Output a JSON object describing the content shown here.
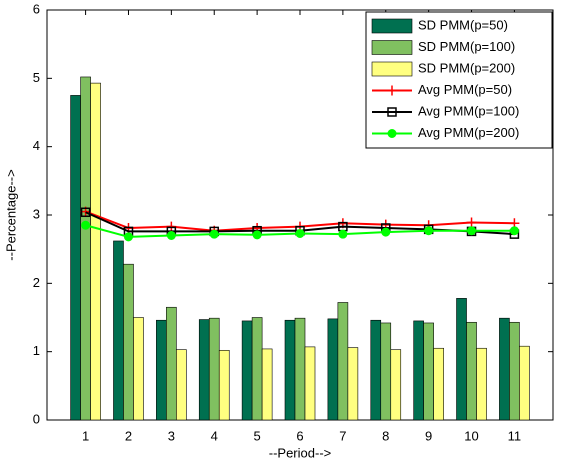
{
  "chart_data": {
    "type": "bar",
    "x": [
      1,
      2,
      3,
      4,
      5,
      6,
      7,
      8,
      9,
      10,
      11
    ],
    "xlim": [
      0.1,
      11.9
    ],
    "xticks": [
      1,
      2,
      3,
      4,
      5,
      6,
      7,
      8,
      9,
      10,
      11
    ],
    "ylim": [
      0,
      6
    ],
    "yticks": [
      0,
      1,
      2,
      3,
      4,
      5,
      6
    ],
    "xlabel": "--Period-->",
    "ylabel": "--Percentage-->",
    "legend": "upper right",
    "series": [
      {
        "name": "SD PMM(p=50)",
        "type": "bar",
        "color": "#007050",
        "values": [
          4.75,
          2.62,
          1.46,
          1.47,
          1.45,
          1.46,
          1.48,
          1.46,
          1.45,
          1.78,
          1.49
        ]
      },
      {
        "name": "SD PMM(p=100)",
        "type": "bar",
        "color": "#80c060",
        "values": [
          5.02,
          2.28,
          1.65,
          1.49,
          1.5,
          1.49,
          1.72,
          1.42,
          1.42,
          1.43,
          1.43
        ]
      },
      {
        "name": "SD PMM(p=200)",
        "type": "bar",
        "color": "#ffff80",
        "values": [
          4.93,
          1.5,
          1.03,
          1.02,
          1.04,
          1.07,
          1.06,
          1.03,
          1.05,
          1.05,
          1.08
        ]
      },
      {
        "name": "Avg PMM(p=50)",
        "type": "line",
        "marker": "plus",
        "color": "#ff0000",
        "values": [
          3.05,
          2.81,
          2.83,
          2.77,
          2.81,
          2.83,
          2.88,
          2.86,
          2.85,
          2.89,
          2.88
        ]
      },
      {
        "name": "Avg PMM(p=100)",
        "type": "line",
        "marker": "square",
        "color": "#000000",
        "values": [
          3.04,
          2.76,
          2.76,
          2.76,
          2.77,
          2.77,
          2.83,
          2.81,
          2.79,
          2.76,
          2.72
        ]
      },
      {
        "name": "Avg PMM(p=200)",
        "type": "line",
        "marker": "circle",
        "color": "#00ff00",
        "values": [
          2.85,
          2.68,
          2.7,
          2.72,
          2.71,
          2.73,
          2.72,
          2.75,
          2.77,
          2.77,
          2.77
        ]
      }
    ]
  }
}
